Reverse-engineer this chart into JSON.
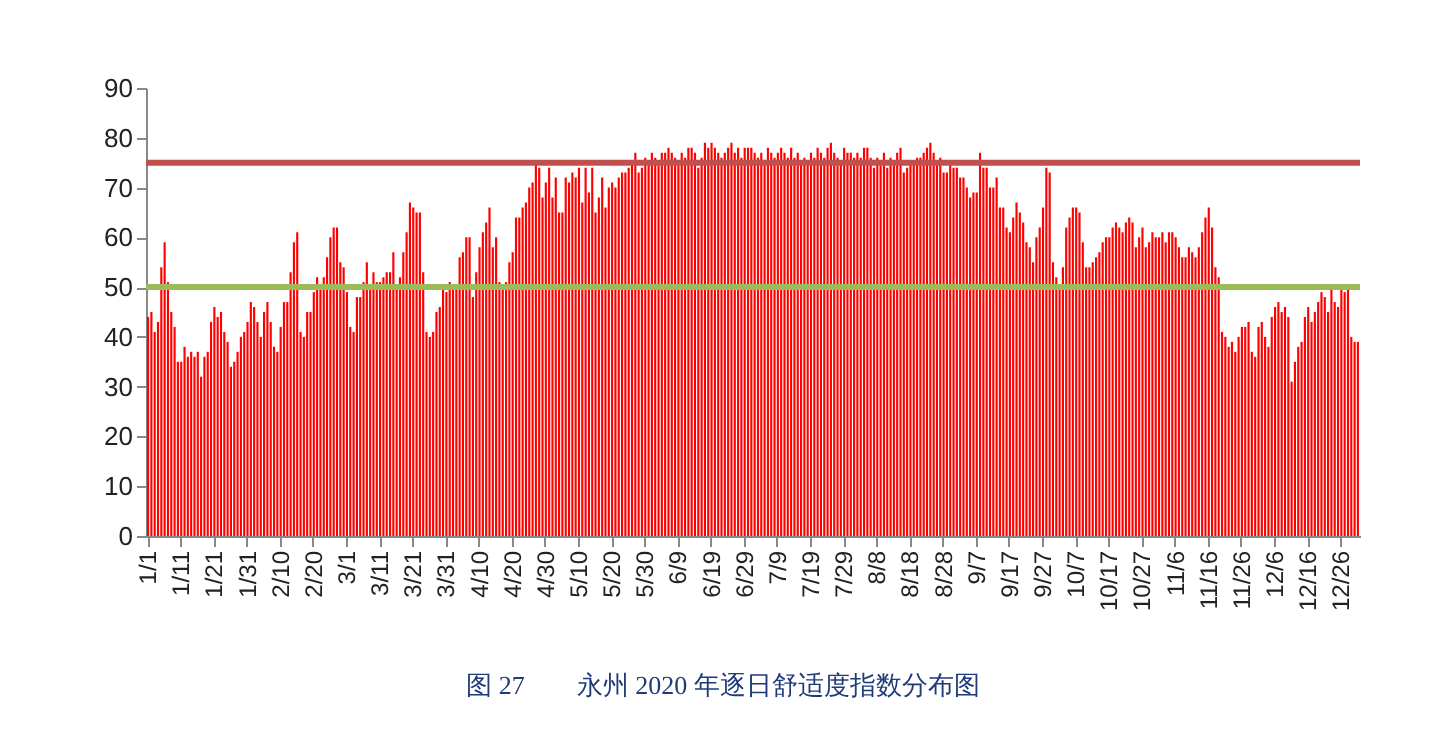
{
  "chart_data": {
    "type": "bar",
    "title": "图 27　　永州 2020 年逐日舒适度指数分布图",
    "categories": [
      "1/1",
      null,
      null,
      null,
      null,
      null,
      null,
      null,
      null,
      null,
      "1/11",
      null,
      null,
      null,
      null,
      null,
      null,
      null,
      null,
      null,
      "1/21",
      null,
      null,
      null,
      null,
      null,
      null,
      null,
      null,
      null,
      "1/31",
      null,
      null,
      null,
      null,
      null,
      null,
      null,
      null,
      null,
      "2/10",
      null,
      null,
      null,
      null,
      null,
      null,
      null,
      null,
      null,
      "2/20",
      null,
      null,
      null,
      null,
      null,
      null,
      null,
      null,
      null,
      "3/1",
      null,
      null,
      null,
      null,
      null,
      null,
      null,
      null,
      null,
      "3/11",
      null,
      null,
      null,
      null,
      null,
      null,
      null,
      null,
      null,
      "3/21",
      null,
      null,
      null,
      null,
      null,
      null,
      null,
      null,
      null,
      "3/31",
      null,
      null,
      null,
      null,
      null,
      null,
      null,
      null,
      null,
      "4/10",
      null,
      null,
      null,
      null,
      null,
      null,
      null,
      null,
      null,
      "4/20",
      null,
      null,
      null,
      null,
      null,
      null,
      null,
      null,
      null,
      "4/30",
      null,
      null,
      null,
      null,
      null,
      null,
      null,
      null,
      null,
      "5/10",
      null,
      null,
      null,
      null,
      null,
      null,
      null,
      null,
      null,
      "5/20",
      null,
      null,
      null,
      null,
      null,
      null,
      null,
      null,
      null,
      "5/30",
      null,
      null,
      null,
      null,
      null,
      null,
      null,
      null,
      null,
      "6/9",
      null,
      null,
      null,
      null,
      null,
      null,
      null,
      null,
      null,
      "6/19",
      null,
      null,
      null,
      null,
      null,
      null,
      null,
      null,
      null,
      "6/29",
      null,
      null,
      null,
      null,
      null,
      null,
      null,
      null,
      null,
      "7/9",
      null,
      null,
      null,
      null,
      null,
      null,
      null,
      null,
      null,
      "7/19",
      null,
      null,
      null,
      null,
      null,
      null,
      null,
      null,
      null,
      "7/29",
      null,
      null,
      null,
      null,
      null,
      null,
      null,
      null,
      null,
      "8/8",
      null,
      null,
      null,
      null,
      null,
      null,
      null,
      null,
      null,
      "8/18",
      null,
      null,
      null,
      null,
      null,
      null,
      null,
      null,
      null,
      "8/28",
      null,
      null,
      null,
      null,
      null,
      null,
      null,
      null,
      null,
      "9/7",
      null,
      null,
      null,
      null,
      null,
      null,
      null,
      null,
      null,
      "9/17",
      null,
      null,
      null,
      null,
      null,
      null,
      null,
      null,
      null,
      "9/27",
      null,
      null,
      null,
      null,
      null,
      null,
      null,
      null,
      null,
      "10/7",
      null,
      null,
      null,
      null,
      null,
      null,
      null,
      null,
      null,
      "10/17",
      null,
      null,
      null,
      null,
      null,
      null,
      null,
      null,
      null,
      "10/27",
      null,
      null,
      null,
      null,
      null,
      null,
      null,
      null,
      null,
      "11/6",
      null,
      null,
      null,
      null,
      null,
      null,
      null,
      null,
      null,
      "11/16",
      null,
      null,
      null,
      null,
      null,
      null,
      null,
      null,
      null,
      "11/26",
      null,
      null,
      null,
      null,
      null,
      null,
      null,
      null,
      null,
      "12/6",
      null,
      null,
      null,
      null,
      null,
      null,
      null,
      null,
      null,
      "12/16",
      null,
      null,
      null,
      null,
      null,
      null,
      null,
      null,
      null,
      "12/26",
      null,
      null,
      null,
      null,
      null
    ],
    "values": [
      44,
      45,
      41,
      43,
      54,
      59,
      51,
      45,
      42,
      35,
      35,
      38,
      36,
      37,
      36,
      37,
      32,
      36,
      37,
      43,
      46,
      44,
      45,
      41,
      39,
      34,
      35,
      37,
      40,
      41,
      43,
      47,
      46,
      43,
      40,
      45,
      47,
      43,
      38,
      37,
      42,
      47,
      47,
      53,
      59,
      61,
      41,
      40,
      45,
      45,
      49,
      52,
      50,
      52,
      56,
      60,
      62,
      62,
      55,
      54,
      49,
      42,
      41,
      48,
      48,
      51,
      55,
      50,
      53,
      51,
      51,
      52,
      53,
      53,
      57,
      50,
      52,
      57,
      61,
      67,
      66,
      65,
      65,
      53,
      41,
      40,
      41,
      45,
      46,
      50,
      49,
      51,
      50,
      50,
      56,
      57,
      60,
      60,
      48,
      53,
      58,
      61,
      63,
      66,
      58,
      60,
      51,
      50,
      51,
      55,
      57,
      64,
      64,
      66,
      67,
      70,
      71,
      75,
      74,
      68,
      71,
      74,
      68,
      72,
      65,
      65,
      72,
      71,
      73,
      72,
      74,
      67,
      74,
      69,
      74,
      65,
      68,
      72,
      66,
      70,
      71,
      70,
      72,
      73,
      73,
      74,
      75,
      77,
      73,
      74,
      76,
      75,
      77,
      76,
      75,
      77,
      77,
      78,
      77,
      76,
      75,
      77,
      76,
      78,
      78,
      77,
      74,
      76,
      79,
      78,
      79,
      78,
      77,
      76,
      77,
      78,
      79,
      77,
      78,
      76,
      78,
      78,
      78,
      77,
      76,
      77,
      75,
      78,
      77,
      76,
      77,
      78,
      77,
      76,
      78,
      76,
      77,
      75,
      76,
      75,
      77,
      76,
      78,
      77,
      76,
      78,
      79,
      77,
      76,
      75,
      78,
      77,
      77,
      76,
      77,
      76,
      78,
      78,
      76,
      74,
      76,
      75,
      77,
      74,
      76,
      75,
      77,
      78,
      73,
      74,
      75,
      75,
      76,
      76,
      77,
      78,
      79,
      77,
      75,
      76,
      73,
      73,
      75,
      74,
      74,
      72,
      72,
      70,
      68,
      69,
      69,
      77,
      74,
      74,
      70,
      70,
      72,
      66,
      66,
      62,
      61,
      64,
      67,
      65,
      63,
      59,
      58,
      55,
      60,
      62,
      66,
      74,
      73,
      55,
      52,
      50,
      54,
      62,
      64,
      66,
      66,
      65,
      59,
      54,
      54,
      55,
      56,
      57,
      59,
      60,
      60,
      62,
      63,
      62,
      61,
      63,
      64,
      63,
      58,
      60,
      62,
      58,
      59,
      61,
      60,
      60,
      61,
      59,
      61,
      61,
      60,
      58,
      56,
      56,
      58,
      57,
      56,
      58,
      61,
      64,
      66,
      62,
      54,
      52,
      41,
      40,
      38,
      39,
      37,
      40,
      42,
      42,
      43,
      37,
      36,
      42,
      43,
      40,
      38,
      44,
      46,
      47,
      45,
      46,
      44,
      31,
      35,
      38,
      39,
      44,
      46,
      43,
      45,
      47,
      49,
      48,
      45,
      50,
      47,
      46,
      50,
      49,
      50,
      40,
      39,
      39
    ],
    "color": "#ff0000",
    "ylim": [
      0,
      90
    ],
    "yticks": [
      0,
      10,
      20,
      30,
      40,
      50,
      60,
      70,
      80,
      90
    ],
    "ref_lines": [
      {
        "axis": "y",
        "value": 75,
        "color": "#c0504d"
      },
      {
        "axis": "y",
        "value": 50,
        "color": "#9bbb59"
      }
    ]
  }
}
